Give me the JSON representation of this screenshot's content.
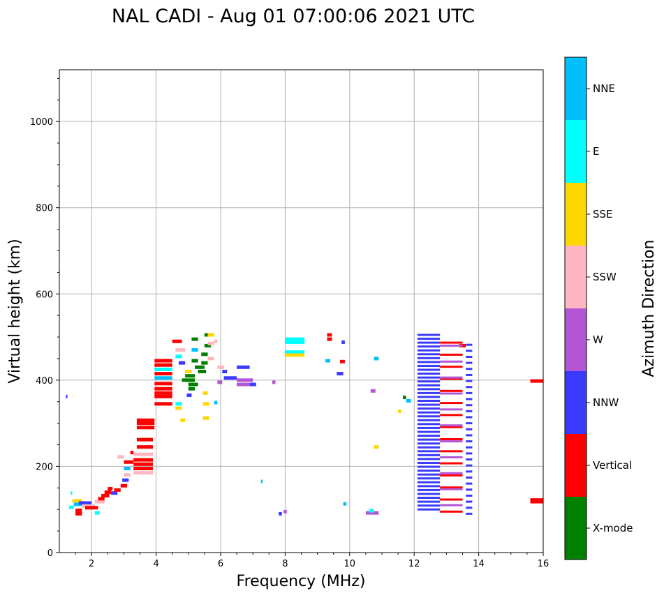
{
  "chart_data": {
    "type": "scatter",
    "title": "NAL CADI - Aug 01 07:00:06 2021 UTC",
    "xlabel": "Frequency (MHz)",
    "ylabel": "Virtual height (km)",
    "xlim": [
      1,
      16
    ],
    "ylim": [
      0,
      1120
    ],
    "xticks": [
      2,
      4,
      6,
      8,
      10,
      12,
      14,
      16
    ],
    "yticks": [
      0,
      200,
      400,
      600,
      800,
      1000
    ],
    "grid": true,
    "colorbar": {
      "label": "Azimuth Direction",
      "categories": [
        {
          "name": "X-mode",
          "color": "#008000"
        },
        {
          "name": "Vertical",
          "color": "#ff0000"
        },
        {
          "name": "NNW",
          "color": "#3b3bff"
        },
        {
          "name": "W",
          "color": "#b455d6"
        },
        {
          "name": "SSW",
          "color": "#ffb6c1"
        },
        {
          "name": "SSE",
          "color": "#ffd700"
        },
        {
          "name": "E",
          "color": "#00ffff"
        },
        {
          "name": "NNE",
          "color": "#00bfff"
        }
      ]
    },
    "segments": [
      {
        "f0": 1.2,
        "f1": 1.25,
        "h": 362,
        "c": "NNW"
      },
      {
        "f0": 1.3,
        "f1": 1.45,
        "h": 105,
        "c": "E"
      },
      {
        "f0": 1.35,
        "f1": 1.4,
        "h": 138,
        "c": "E"
      },
      {
        "f0": 1.4,
        "f1": 1.7,
        "h": 120,
        "c": "SSE"
      },
      {
        "f0": 1.45,
        "f1": 1.8,
        "h": 112,
        "c": "NNE"
      },
      {
        "f0": 1.5,
        "f1": 1.7,
        "h": 98,
        "c": "Vertical"
      },
      {
        "f0": 1.5,
        "f1": 1.7,
        "h": 90,
        "c": "Vertical"
      },
      {
        "f0": 1.6,
        "f1": 2.0,
        "h": 115,
        "c": "NNW"
      },
      {
        "f0": 1.7,
        "f1": 2.1,
        "h": 108,
        "c": "SSW"
      },
      {
        "f0": 1.8,
        "f1": 2.2,
        "h": 104,
        "c": "Vertical"
      },
      {
        "f0": 2.1,
        "f1": 2.25,
        "h": 92,
        "c": "E"
      },
      {
        "f0": 2.1,
        "f1": 2.4,
        "h": 118,
        "c": "SSW"
      },
      {
        "f0": 2.2,
        "f1": 2.4,
        "h": 125,
        "c": "Vertical"
      },
      {
        "f0": 2.3,
        "f1": 2.55,
        "h": 132,
        "c": "Vertical"
      },
      {
        "f0": 2.4,
        "f1": 2.6,
        "h": 140,
        "c": "Vertical"
      },
      {
        "f0": 2.5,
        "f1": 2.65,
        "h": 148,
        "c": "Vertical"
      },
      {
        "f0": 2.6,
        "f1": 2.8,
        "h": 138,
        "c": "NNW"
      },
      {
        "f0": 2.7,
        "f1": 2.9,
        "h": 145,
        "c": "Vertical"
      },
      {
        "f0": 2.9,
        "f1": 3.1,
        "h": 155,
        "c": "Vertical"
      },
      {
        "f0": 2.95,
        "f1": 3.15,
        "h": 168,
        "c": "NNW"
      },
      {
        "f0": 3.0,
        "f1": 3.2,
        "h": 180,
        "c": "SSW"
      },
      {
        "f0": 3.0,
        "f1": 3.2,
        "h": 195,
        "c": "NNE"
      },
      {
        "f0": 3.0,
        "f1": 3.3,
        "h": 210,
        "c": "Vertical"
      },
      {
        "f0": 2.8,
        "f1": 3.0,
        "h": 222,
        "c": "SSW"
      },
      {
        "f0": 3.2,
        "f1": 3.3,
        "h": 232,
        "c": "Vertical"
      },
      {
        "f0": 3.3,
        "f1": 3.9,
        "h": 185,
        "c": "SSW"
      },
      {
        "f0": 3.3,
        "f1": 3.9,
        "h": 195,
        "c": "Vertical"
      },
      {
        "f0": 3.3,
        "f1": 3.9,
        "h": 205,
        "c": "Vertical"
      },
      {
        "f0": 3.3,
        "f1": 3.9,
        "h": 215,
        "c": "Vertical"
      },
      {
        "f0": 3.3,
        "f1": 3.9,
        "h": 228,
        "c": "SSW"
      },
      {
        "f0": 3.4,
        "f1": 3.9,
        "h": 245,
        "c": "Vertical"
      },
      {
        "f0": 3.4,
        "f1": 3.9,
        "h": 262,
        "c": "Vertical"
      },
      {
        "f0": 3.4,
        "f1": 3.95,
        "h": 290,
        "c": "Vertical"
      },
      {
        "f0": 3.4,
        "f1": 3.95,
        "h": 300,
        "c": "Vertical"
      },
      {
        "f0": 3.4,
        "f1": 3.95,
        "h": 307,
        "c": "Vertical"
      },
      {
        "f0": 3.95,
        "f1": 4.5,
        "h": 345,
        "c": "Vertical"
      },
      {
        "f0": 3.95,
        "f1": 4.5,
        "h": 362,
        "c": "Vertical"
      },
      {
        "f0": 3.95,
        "f1": 4.5,
        "h": 370,
        "c": "Vertical"
      },
      {
        "f0": 3.95,
        "f1": 4.5,
        "h": 380,
        "c": "Vertical"
      },
      {
        "f0": 3.95,
        "f1": 4.5,
        "h": 392,
        "c": "Vertical"
      },
      {
        "f0": 3.95,
        "f1": 4.5,
        "h": 405,
        "c": "NNE"
      },
      {
        "f0": 3.95,
        "f1": 4.5,
        "h": 415,
        "c": "Vertical"
      },
      {
        "f0": 3.95,
        "f1": 4.5,
        "h": 425,
        "c": "E"
      },
      {
        "f0": 3.95,
        "f1": 4.5,
        "h": 435,
        "c": "Vertical"
      },
      {
        "f0": 3.95,
        "f1": 4.5,
        "h": 445,
        "c": "Vertical"
      },
      {
        "f0": 4.5,
        "f1": 4.8,
        "h": 490,
        "c": "Vertical"
      },
      {
        "f0": 4.6,
        "f1": 4.9,
        "h": 470,
        "c": "SSW"
      },
      {
        "f0": 4.6,
        "f1": 4.8,
        "h": 455,
        "c": "E"
      },
      {
        "f0": 4.7,
        "f1": 4.9,
        "h": 440,
        "c": "NNW"
      },
      {
        "f0": 4.6,
        "f1": 4.8,
        "h": 335,
        "c": "SSE"
      },
      {
        "f0": 4.6,
        "f1": 4.8,
        "h": 345,
        "c": "E"
      },
      {
        "f0": 4.75,
        "f1": 4.9,
        "h": 307,
        "c": "SSE"
      },
      {
        "f0": 4.8,
        "f1": 5.2,
        "h": 400,
        "c": "X-mode"
      },
      {
        "f0": 4.9,
        "f1": 5.2,
        "h": 410,
        "c": "X-mode"
      },
      {
        "f0": 4.9,
        "f1": 5.1,
        "h": 420,
        "c": "SSE"
      },
      {
        "f0": 5.0,
        "f1": 5.3,
        "h": 390,
        "c": "X-mode"
      },
      {
        "f0": 5.0,
        "f1": 5.2,
        "h": 380,
        "c": "X-mode"
      },
      {
        "f0": 4.95,
        "f1": 5.1,
        "h": 365,
        "c": "NNW"
      },
      {
        "f0": 5.1,
        "f1": 5.3,
        "h": 445,
        "c": "X-mode"
      },
      {
        "f0": 5.1,
        "f1": 5.3,
        "h": 470,
        "c": "NNE"
      },
      {
        "f0": 5.1,
        "f1": 5.3,
        "h": 495,
        "c": "X-mode"
      },
      {
        "f0": 5.2,
        "f1": 5.5,
        "h": 430,
        "c": "X-mode"
      },
      {
        "f0": 5.3,
        "f1": 5.55,
        "h": 420,
        "c": "X-mode"
      },
      {
        "f0": 5.4,
        "f1": 5.6,
        "h": 440,
        "c": "X-mode"
      },
      {
        "f0": 5.4,
        "f1": 5.6,
        "h": 460,
        "c": "X-mode"
      },
      {
        "f0": 5.5,
        "f1": 5.7,
        "h": 480,
        "c": "X-mode"
      },
      {
        "f0": 5.5,
        "f1": 5.7,
        "h": 505,
        "c": "X-mode"
      },
      {
        "f0": 5.45,
        "f1": 5.65,
        "h": 345,
        "c": "SSE"
      },
      {
        "f0": 5.45,
        "f1": 5.65,
        "h": 312,
        "c": "SSE"
      },
      {
        "f0": 5.45,
        "f1": 5.6,
        "h": 370,
        "c": "SSE"
      },
      {
        "f0": 5.6,
        "f1": 5.8,
        "h": 505,
        "c": "SSE"
      },
      {
        "f0": 5.6,
        "f1": 5.8,
        "h": 485,
        "c": "SSW"
      },
      {
        "f0": 5.6,
        "f1": 5.8,
        "h": 450,
        "c": "SSW"
      },
      {
        "f0": 5.8,
        "f1": 5.9,
        "h": 490,
        "c": "SSW"
      },
      {
        "f0": 5.8,
        "f1": 5.9,
        "h": 348,
        "c": "NNE"
      },
      {
        "f0": 5.9,
        "f1": 6.1,
        "h": 430,
        "c": "SSW"
      },
      {
        "f0": 5.9,
        "f1": 6.05,
        "h": 395,
        "c": "W"
      },
      {
        "f0": 6.05,
        "f1": 6.2,
        "h": 420,
        "c": "NNW"
      },
      {
        "f0": 6.1,
        "f1": 6.5,
        "h": 405,
        "c": "NNW"
      },
      {
        "f0": 6.5,
        "f1": 6.9,
        "h": 430,
        "c": "NNW"
      },
      {
        "f0": 6.5,
        "f1": 7.0,
        "h": 400,
        "c": "W"
      },
      {
        "f0": 6.5,
        "f1": 6.9,
        "h": 390,
        "c": "W"
      },
      {
        "f0": 6.9,
        "f1": 7.1,
        "h": 390,
        "c": "NNW"
      },
      {
        "f0": 7.6,
        "f1": 7.7,
        "h": 395,
        "c": "W"
      },
      {
        "f0": 7.25,
        "f1": 7.3,
        "h": 165,
        "c": "NNE"
      },
      {
        "f0": 7.8,
        "f1": 7.9,
        "h": 90,
        "c": "NNW"
      },
      {
        "f0": 7.95,
        "f1": 8.05,
        "h": 95,
        "c": "W"
      },
      {
        "f0": 8.0,
        "f1": 8.6,
        "h": 495,
        "c": "E"
      },
      {
        "f0": 8.0,
        "f1": 8.6,
        "h": 488,
        "c": "E"
      },
      {
        "f0": 8.0,
        "f1": 8.6,
        "h": 465,
        "c": "E"
      },
      {
        "f0": 8.0,
        "f1": 8.6,
        "h": 458,
        "c": "SSE"
      },
      {
        "f0": 9.3,
        "f1": 9.45,
        "h": 505,
        "c": "Vertical"
      },
      {
        "f0": 9.3,
        "f1": 9.45,
        "h": 495,
        "c": "Vertical"
      },
      {
        "f0": 9.25,
        "f1": 9.4,
        "h": 445,
        "c": "NNE"
      },
      {
        "f0": 9.75,
        "f1": 9.85,
        "h": 488,
        "c": "NNW"
      },
      {
        "f0": 9.7,
        "f1": 9.85,
        "h": 443,
        "c": "Vertical"
      },
      {
        "f0": 9.6,
        "f1": 9.8,
        "h": 415,
        "c": "NNW"
      },
      {
        "f0": 9.8,
        "f1": 9.9,
        "h": 113,
        "c": "NNE"
      },
      {
        "f0": 10.5,
        "f1": 10.9,
        "h": 92,
        "c": "W"
      },
      {
        "f0": 10.6,
        "f1": 10.75,
        "h": 97,
        "c": "E"
      },
      {
        "f0": 10.65,
        "f1": 10.8,
        "h": 375,
        "c": "W"
      },
      {
        "f0": 10.75,
        "f1": 10.9,
        "h": 450,
        "c": "NNE"
      },
      {
        "f0": 10.75,
        "f1": 10.9,
        "h": 245,
        "c": "SSE"
      },
      {
        "f0": 11.5,
        "f1": 11.6,
        "h": 328,
        "c": "SSE"
      },
      {
        "f0": 11.65,
        "f1": 11.75,
        "h": 360,
        "c": "X-mode"
      },
      {
        "f0": 11.75,
        "f1": 11.9,
        "h": 352,
        "c": "NNE"
      },
      {
        "f0": 15.6,
        "f1": 16.0,
        "h": 398,
        "c": "Vertical"
      },
      {
        "f0": 15.6,
        "f1": 16.0,
        "h": 122,
        "c": "Vertical"
      },
      {
        "f0": 15.6,
        "f1": 16.0,
        "h": 118,
        "c": "Vertical"
      },
      {
        "f0": 13.4,
        "f1": 13.6,
        "h": 480,
        "c": "Vertical"
      }
    ],
    "stripes": [
      {
        "f0": 12.1,
        "f1": 12.8,
        "c": "NNW",
        "h0": 100,
        "h1": 505,
        "step": 9
      },
      {
        "f0": 12.8,
        "f1": 13.5,
        "c": "Vertical",
        "h0": 95,
        "h1": 500,
        "step": 28
      },
      {
        "f0": 12.8,
        "f1": 13.5,
        "c": "W",
        "h0": 110,
        "h1": 480,
        "step": 37
      },
      {
        "f0": 13.6,
        "f1": 13.8,
        "c": "NNW",
        "h0": 90,
        "h1": 495,
        "step": 14
      }
    ]
  }
}
